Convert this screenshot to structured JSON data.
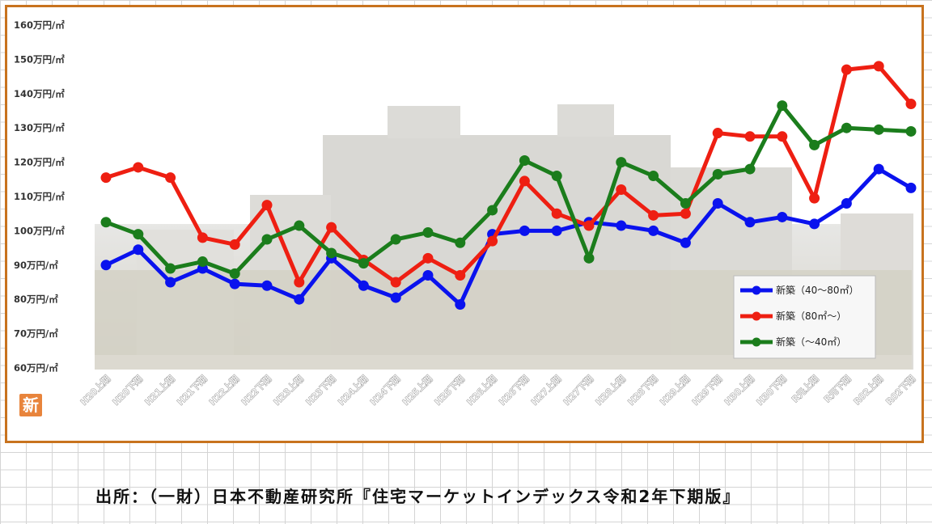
{
  "source_text": "出所：（一財）日本不動産研究所『住宅マーケットインデックス令和2年下期版』",
  "badge_text": "新",
  "chart_data": {
    "type": "line",
    "categories": [
      "H20上期",
      "H20下期",
      "H21上期",
      "H21下期",
      "H22上期",
      "H22下期",
      "H23上期",
      "H23下期",
      "H24上期",
      "H24下期",
      "H25上期",
      "H25下期",
      "H26上期",
      "H26下期",
      "H27上期",
      "H27下期",
      "H28上期",
      "H28下期",
      "H29上期",
      "H29下期",
      "H30上期",
      "H30下期",
      "R元上期",
      "R元下期",
      "R02上期",
      "R02下期"
    ],
    "y_ticks": [
      60,
      70,
      80,
      90,
      100,
      110,
      120,
      130,
      140,
      150,
      160
    ],
    "y_tick_labels": [
      "60万円/㎡",
      "70万円/㎡",
      "80万円/㎡",
      "90万円/㎡",
      "100万円/㎡",
      "110万円/㎡",
      "120万円/㎡",
      "130万円/㎡",
      "140万円/㎡",
      "150万円/㎡",
      "160万円/㎡"
    ],
    "ylim": [
      60,
      160
    ],
    "legend_position": "bottom-right",
    "series": [
      {
        "name": "新築（40～80㎡）",
        "color": "#0a12ee",
        "values": [
          90,
          94.5,
          85,
          89,
          84.5,
          84,
          80,
          92,
          84,
          80.5,
          87,
          78.5,
          99,
          100,
          100,
          102.5,
          101.5,
          100,
          96.5,
          108,
          102.5,
          104,
          102,
          108,
          118,
          112.5
        ]
      },
      {
        "name": "新築（80㎡～）",
        "color": "#ee1f12",
        "values": [
          115.5,
          118.5,
          115.5,
          98,
          96,
          107.5,
          85,
          101,
          91.5,
          85,
          92,
          87,
          97,
          114.5,
          105,
          101.5,
          112,
          104.5,
          105,
          128.5,
          127.5,
          127.5,
          109.5,
          147,
          148,
          137
        ]
      },
      {
        "name": "新築（～40㎡）",
        "color": "#1b7d1c",
        "values": [
          102.5,
          99,
          89,
          91,
          87.5,
          97.5,
          101.5,
          93.5,
          90.5,
          97.5,
          99.5,
          96.5,
          106,
          120.5,
          116,
          92,
          120,
          116,
          108,
          116.5,
          118,
          136.5,
          125,
          130,
          129.5,
          129
        ]
      }
    ]
  }
}
